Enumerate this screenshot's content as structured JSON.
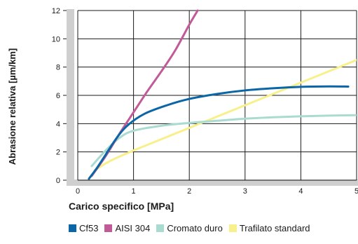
{
  "chart_data": {
    "type": "line",
    "xlabel": "Carico specifico [MPa]",
    "ylabel": "Abrasione relativa [µm/km]",
    "xlim": [
      0,
      5
    ],
    "ylim": [
      0,
      12
    ],
    "x_ticks": [
      "0",
      "1",
      "2",
      "3",
      "4",
      "5"
    ],
    "y_ticks": [
      "0",
      "2",
      "4",
      "6",
      "8",
      "10",
      "12"
    ],
    "grid": true,
    "legend_position": "bottom",
    "series": [
      {
        "name": "Cf53",
        "color": "#0a66a6",
        "points": [
          [
            0.2,
            0.1
          ],
          [
            0.35,
            0.9
          ],
          [
            0.5,
            1.8
          ],
          [
            0.7,
            3.0
          ],
          [
            0.9,
            3.9
          ],
          [
            1.2,
            4.7
          ],
          [
            1.6,
            5.3
          ],
          [
            2.0,
            5.75
          ],
          [
            2.5,
            6.1
          ],
          [
            3.0,
            6.35
          ],
          [
            3.5,
            6.5
          ],
          [
            4.0,
            6.6
          ],
          [
            4.5,
            6.63
          ],
          [
            4.85,
            6.62
          ]
        ]
      },
      {
        "name": "AISI 304",
        "color": "#c25a97",
        "points": [
          [
            0.25,
            0.3
          ],
          [
            0.5,
            1.7
          ],
          [
            0.75,
            3.3
          ],
          [
            1.0,
            4.8
          ],
          [
            1.25,
            6.3
          ],
          [
            1.5,
            7.7
          ],
          [
            1.75,
            9.2
          ],
          [
            2.0,
            11.0
          ],
          [
            2.15,
            12.0
          ]
        ]
      },
      {
        "name": "Cromato duro",
        "color": "#aadbd0",
        "points": [
          [
            0.25,
            1.0
          ],
          [
            0.5,
            2.1
          ],
          [
            0.75,
            3.0
          ],
          [
            1.0,
            3.5
          ],
          [
            1.5,
            3.85
          ],
          [
            2.0,
            4.05
          ],
          [
            2.5,
            4.2
          ],
          [
            3.0,
            4.35
          ],
          [
            3.5,
            4.45
          ],
          [
            4.0,
            4.52
          ],
          [
            4.5,
            4.57
          ],
          [
            5.0,
            4.6
          ]
        ]
      },
      {
        "name": "Trafilato standard",
        "color": "#f8f08a",
        "points": [
          [
            0.3,
            0.7
          ],
          [
            0.6,
            1.4
          ],
          [
            1.0,
            2.1
          ],
          [
            1.5,
            2.9
          ],
          [
            2.0,
            3.7
          ],
          [
            2.5,
            4.5
          ],
          [
            3.0,
            5.3
          ],
          [
            3.5,
            6.1
          ],
          [
            4.0,
            6.9
          ],
          [
            4.5,
            7.7
          ],
          [
            5.0,
            8.5
          ]
        ]
      }
    ]
  }
}
